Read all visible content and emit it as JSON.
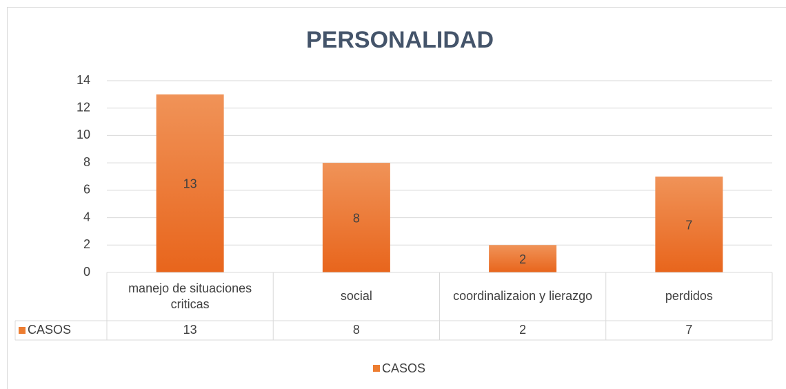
{
  "chart_data": {
    "type": "bar",
    "title": "PERSONALIDAD",
    "categories": [
      "manejo de situaciones criticas",
      "social",
      "coordinalizaion y lierazgo",
      "perdidos"
    ],
    "series": [
      {
        "name": "CASOS",
        "color": "#ed7d31",
        "values": [
          13,
          8,
          2,
          7
        ]
      }
    ],
    "ylim": [
      0,
      14
    ],
    "yticks": [
      0,
      2,
      4,
      6,
      8,
      10,
      12,
      14
    ],
    "grid": true,
    "data_labels": true,
    "data_table": true,
    "legend": "bottom"
  }
}
